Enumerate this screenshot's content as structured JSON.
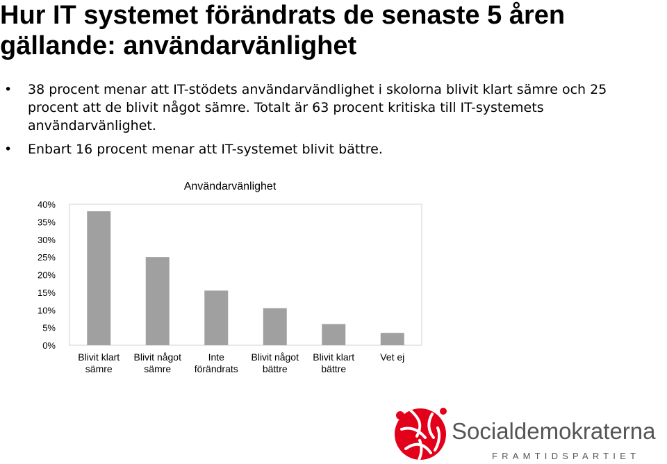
{
  "slide": {
    "title": "Hur IT systemet förändrats de senaste 5 åren gällande: användarvänlighet",
    "bullets": [
      "38 procent menar att IT-stödets användarvändlighet i skolorna blivit klart sämre och 25 procent att de blivit något sämre. Totalt är 63 procent kritiska till IT-systemets användarvänlighet.",
      "Enbart 16 procent menar att IT-systemet blivit bättre."
    ],
    "bullet_symbol": "•"
  },
  "chart_data": {
    "type": "bar",
    "title": "Användarvänlighet",
    "categories": [
      [
        "Blivit klart",
        "sämre"
      ],
      [
        "Blivit något",
        "sämre"
      ],
      [
        "Inte",
        "förändrats"
      ],
      [
        "Blivit något",
        "bättre"
      ],
      [
        "Blivit klart",
        "bättre"
      ],
      [
        "Vet ej"
      ]
    ],
    "values": [
      38,
      25,
      15.5,
      10.5,
      6,
      3.5
    ],
    "ylim": [
      0,
      40
    ],
    "yticks": [
      0,
      5,
      10,
      15,
      20,
      25,
      30,
      35,
      40
    ],
    "ytick_suffix": "%",
    "xlabel": "",
    "ylabel": "",
    "bar_color": "#a0a0a0",
    "grid": false,
    "legend": "none"
  },
  "logo": {
    "name": "Socialdemokraterna",
    "tagline": "FRAMTIDSPARTIET",
    "color": "#e2001a"
  }
}
